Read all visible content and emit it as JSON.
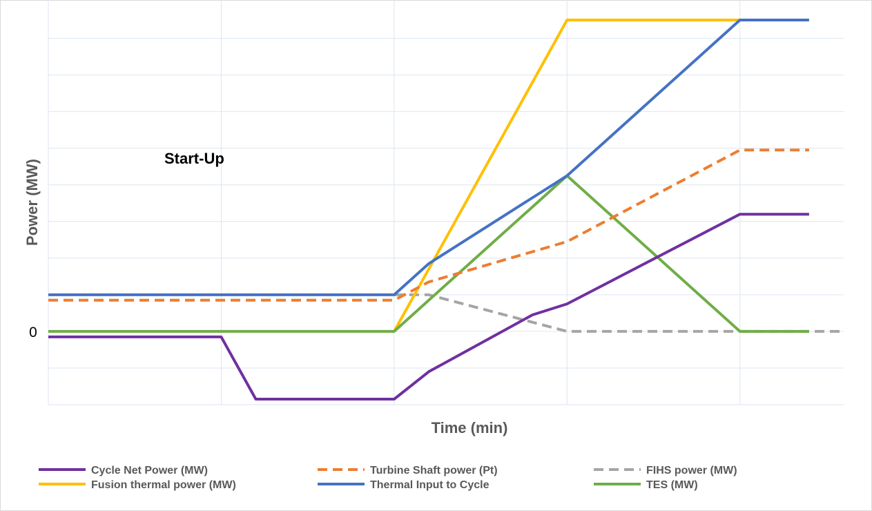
{
  "chart_data": {
    "type": "line",
    "title": "",
    "xlabel": "Time (min)",
    "ylabel": "Power (MW)",
    "annotation": "Start-Up",
    "y_tick_labels": [
      {
        "value": 0,
        "label": "0"
      }
    ],
    "xlim": [
      0,
      23
    ],
    "ylim": [
      -2,
      8.5
    ],
    "grid": true,
    "legend_position": "bottom",
    "series": [
      {
        "name": "Cycle Net Power (MW)",
        "color": "#7030A0",
        "dash": false,
        "x": [
          0,
          5,
          6,
          10,
          11,
          14,
          15,
          20,
          22
        ],
        "y": [
          -0.15,
          -0.15,
          -1.85,
          -1.85,
          -1.1,
          0.45,
          0.75,
          3.2,
          3.2
        ]
      },
      {
        "name": "Turbine Shaft power (Pt)",
        "color": "#ED7D31",
        "dash": true,
        "x": [
          0,
          10,
          11,
          15,
          20,
          22
        ],
        "y": [
          0.85,
          0.85,
          1.35,
          2.45,
          4.95,
          4.95
        ]
      },
      {
        "name": "FIHS power (MW)",
        "color": "#A5A5A5",
        "dash": true,
        "x": [
          10,
          11,
          15,
          23
        ],
        "y": [
          1.0,
          1.0,
          0,
          0
        ]
      },
      {
        "name": "Fusion thermal power (MW)",
        "color": "#FFC000",
        "dash": false,
        "x": [
          10,
          15,
          20
        ],
        "y": [
          0,
          8.5,
          8.5
        ]
      },
      {
        "name": "Thermal Input to Cycle",
        "color": "#4472C4",
        "dash": false,
        "x": [
          0,
          10,
          11,
          15,
          20,
          22
        ],
        "y": [
          1.0,
          1.0,
          1.85,
          4.25,
          8.5,
          8.5
        ]
      },
      {
        "name": "TES (MW)",
        "color": "#70AD47",
        "dash": false,
        "x": [
          0,
          10,
          15,
          20,
          22
        ],
        "y": [
          0,
          0,
          4.25,
          0,
          0
        ]
      }
    ]
  }
}
